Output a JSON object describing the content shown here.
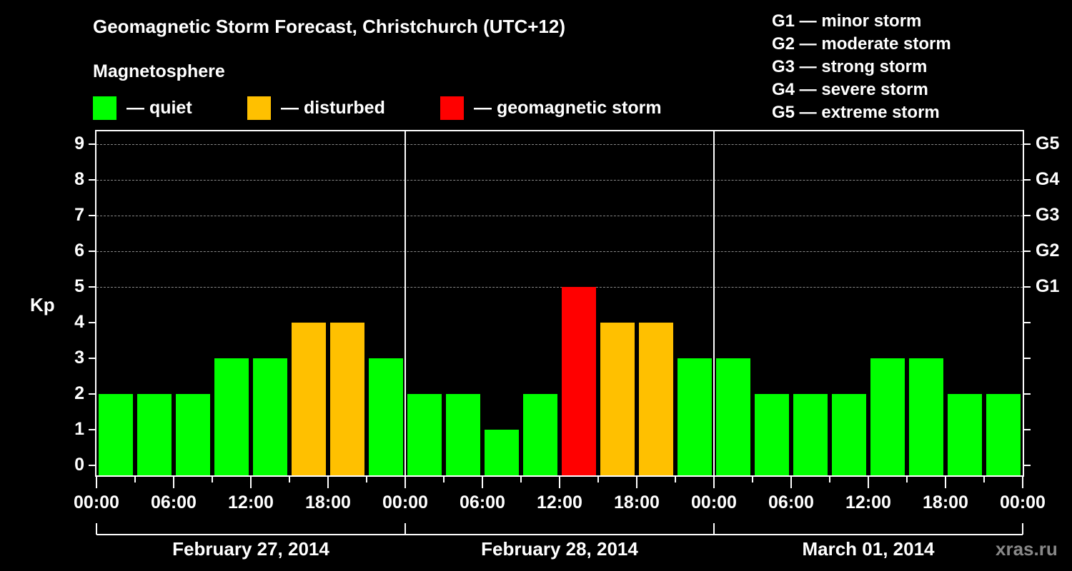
{
  "header": {
    "title": "Geomagnetic Storm Forecast, Christchurch (UTC+12)",
    "subtitle": "Magnetosphere",
    "legend": [
      {
        "label": "— quiet",
        "color": "#00ff00"
      },
      {
        "label": "— disturbed",
        "color": "#ffc000"
      },
      {
        "label": "— geomagnetic storm",
        "color": "#ff0000"
      }
    ],
    "g_scale": [
      "G1 — minor storm",
      "G2 — moderate storm",
      "G3 — strong storm",
      "G4 — severe storm",
      "G5 — extreme storm"
    ]
  },
  "axes": {
    "y_label": "Kp",
    "y_ticks": [
      "0",
      "1",
      "2",
      "3",
      "4",
      "5",
      "6",
      "7",
      "8",
      "9"
    ],
    "g_ticks": [
      {
        "label": "G1",
        "kp": 5
      },
      {
        "label": "G2",
        "kp": 6
      },
      {
        "label": "G3",
        "kp": 7
      },
      {
        "label": "G4",
        "kp": 8
      },
      {
        "label": "G5",
        "kp": 9
      }
    ],
    "x_ticks": [
      "00:00",
      "06:00",
      "12:00",
      "18:00",
      "00:00",
      "06:00",
      "12:00",
      "18:00",
      "00:00",
      "06:00",
      "12:00",
      "18:00",
      "00:00"
    ],
    "dates": [
      "February 27, 2014",
      "February 28, 2014",
      "March 01, 2014"
    ]
  },
  "watermark": "xras.ru",
  "colors": {
    "quiet": "#00ff00",
    "disturbed": "#ffc000",
    "storm": "#ff0000"
  },
  "chart_data": {
    "type": "bar",
    "title": "Geomagnetic Storm Forecast, Christchurch (UTC+12)",
    "xlabel": "",
    "ylabel": "Kp",
    "ylim": [
      0,
      9
    ],
    "grid": "dashed horizontal at Kp 5-9",
    "legend_position": "top",
    "categories": [
      "Feb 27 00:00",
      "Feb 27 03:00",
      "Feb 27 06:00",
      "Feb 27 09:00",
      "Feb 27 12:00",
      "Feb 27 15:00",
      "Feb 27 18:00",
      "Feb 27 21:00",
      "Feb 28 00:00",
      "Feb 28 03:00",
      "Feb 28 06:00",
      "Feb 28 09:00",
      "Feb 28 12:00",
      "Feb 28 15:00",
      "Feb 28 18:00",
      "Feb 28 21:00",
      "Mar 01 00:00",
      "Mar 01 03:00",
      "Mar 01 06:00",
      "Mar 01 09:00",
      "Mar 01 12:00",
      "Mar 01 15:00",
      "Mar 01 18:00",
      "Mar 01 21:00"
    ],
    "values": [
      2,
      2,
      2,
      3,
      3,
      4,
      4,
      3,
      2,
      2,
      1,
      2,
      5,
      4,
      4,
      3,
      3,
      2,
      2,
      2,
      3,
      3,
      2,
      2
    ],
    "status": [
      "quiet",
      "quiet",
      "quiet",
      "quiet",
      "quiet",
      "disturbed",
      "disturbed",
      "quiet",
      "quiet",
      "quiet",
      "quiet",
      "quiet",
      "storm",
      "disturbed",
      "disturbed",
      "quiet",
      "quiet",
      "quiet",
      "quiet",
      "quiet",
      "quiet",
      "quiet",
      "quiet",
      "quiet"
    ],
    "secondary_axis": {
      "G1": 5,
      "G2": 6,
      "G3": 7,
      "G4": 8,
      "G5": 9
    }
  }
}
